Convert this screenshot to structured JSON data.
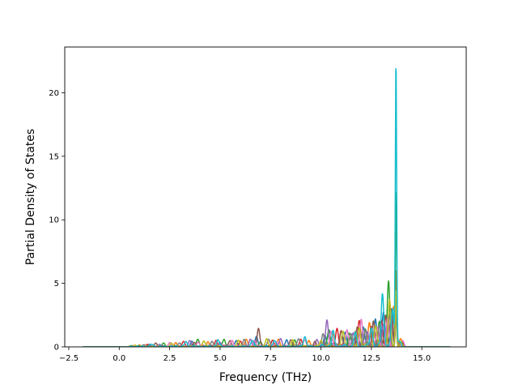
{
  "chart_data": {
    "type": "line",
    "title": "",
    "xlabel": "Frequency (THz)",
    "ylabel": "Partial Density of States",
    "xlim": [
      -2.7,
      17.2
    ],
    "ylim": [
      0,
      23.6
    ],
    "x_ticks": [
      -2.5,
      0.0,
      2.5,
      5.0,
      7.5,
      10.0,
      12.5,
      15.0
    ],
    "x_tick_labels": [
      "−2.5",
      "0.0",
      "2.5",
      "5.0",
      "7.5",
      "10.0",
      "12.5",
      "15.0"
    ],
    "y_ticks": [
      0,
      5,
      10,
      15,
      20
    ],
    "y_tick_labels": [
      "0",
      "5",
      "10",
      "15",
      "20"
    ],
    "grid": false,
    "legend": "none",
    "x_range_of_data": [
      -1.8,
      16.4
    ],
    "palette": [
      "#1f77b4",
      "#ff7f0e",
      "#2ca02c",
      "#d62728",
      "#9467bd",
      "#8c564b",
      "#e377c2",
      "#7f7f7f",
      "#bcbd22",
      "#17becf"
    ],
    "series": [
      {
        "color": "#1f77b4",
        "peaks": [
          [
            1.5,
            0.2
          ],
          [
            3.6,
            0.45
          ],
          [
            5.8,
            0.5
          ],
          [
            6.8,
            0.8
          ],
          [
            8.3,
            0.55
          ],
          [
            10.2,
            0.9
          ],
          [
            11.2,
            1.1
          ],
          [
            12.1,
            1.5
          ],
          [
            12.7,
            2.2
          ],
          [
            13.1,
            2.6
          ],
          [
            13.5,
            2.0
          ],
          [
            13.72,
            4.0
          ],
          [
            14.0,
            0.4
          ]
        ]
      },
      {
        "color": "#ff7f0e",
        "peaks": [
          [
            1.0,
            0.15
          ],
          [
            2.8,
            0.3
          ],
          [
            4.4,
            0.4
          ],
          [
            6.3,
            0.5
          ],
          [
            7.9,
            0.6
          ],
          [
            9.4,
            0.5
          ],
          [
            10.6,
            1.0
          ],
          [
            11.7,
            1.2
          ],
          [
            12.4,
            1.8
          ],
          [
            13.2,
            2.4
          ],
          [
            13.6,
            3.2
          ],
          [
            13.72,
            5.5
          ],
          [
            13.95,
            0.5
          ]
        ]
      },
      {
        "color": "#2ca02c",
        "peaks": [
          [
            0.6,
            0.1
          ],
          [
            2.2,
            0.25
          ],
          [
            3.9,
            0.5
          ],
          [
            5.2,
            0.55
          ],
          [
            7.0,
            0.4
          ],
          [
            8.7,
            0.5
          ],
          [
            10.4,
            1.2
          ],
          [
            11.4,
            0.9
          ],
          [
            12.2,
            1.4
          ],
          [
            12.9,
            2.0
          ],
          [
            13.35,
            5.2
          ],
          [
            13.72,
            12.6
          ],
          [
            14.0,
            0.3
          ]
        ]
      },
      {
        "color": "#d62728",
        "peaks": [
          [
            1.4,
            0.2
          ],
          [
            3.2,
            0.35
          ],
          [
            4.8,
            0.5
          ],
          [
            6.0,
            0.45
          ],
          [
            7.6,
            0.5
          ],
          [
            9.0,
            0.6
          ],
          [
            10.8,
            1.3
          ],
          [
            11.9,
            2.0
          ],
          [
            12.5,
            1.6
          ],
          [
            13.0,
            2.1
          ],
          [
            13.5,
            2.8
          ],
          [
            13.72,
            3.3
          ],
          [
            14.05,
            0.4
          ]
        ]
      },
      {
        "color": "#9467bd",
        "peaks": [
          [
            2.0,
            0.2
          ],
          [
            3.5,
            0.4
          ],
          [
            5.0,
            0.35
          ],
          [
            6.5,
            0.6
          ],
          [
            8.0,
            0.55
          ],
          [
            9.8,
            0.5
          ],
          [
            10.3,
            2.1
          ],
          [
            11.6,
            1.0
          ],
          [
            12.3,
            1.2
          ],
          [
            13.1,
            1.8
          ],
          [
            13.6,
            2.4
          ],
          [
            13.72,
            3.0
          ],
          [
            13.95,
            0.3
          ]
        ]
      },
      {
        "color": "#8c564b",
        "peaks": [
          [
            1.8,
            0.25
          ],
          [
            3.7,
            0.3
          ],
          [
            5.5,
            0.45
          ],
          [
            6.9,
            1.4
          ],
          [
            8.5,
            0.5
          ],
          [
            9.7,
            0.4
          ],
          [
            11.0,
            1.1
          ],
          [
            11.8,
            1.4
          ],
          [
            12.6,
            1.9
          ],
          [
            13.2,
            2.5
          ],
          [
            13.5,
            3.0
          ],
          [
            13.72,
            3.6
          ],
          [
            14.0,
            0.4
          ]
        ]
      },
      {
        "color": "#e377c2",
        "peaks": [
          [
            2.5,
            0.3
          ],
          [
            3.9,
            0.35
          ],
          [
            5.6,
            0.5
          ],
          [
            6.7,
            0.5
          ],
          [
            7.8,
            0.4
          ],
          [
            9.2,
            0.55
          ],
          [
            10.5,
            1.0
          ],
          [
            11.3,
            1.2
          ],
          [
            12.0,
            2.0
          ],
          [
            12.8,
            1.5
          ],
          [
            13.3,
            2.2
          ],
          [
            13.72,
            2.8
          ],
          [
            14.05,
            0.5
          ]
        ]
      },
      {
        "color": "#7f7f7f",
        "peaks": [
          [
            1.2,
            0.15
          ],
          [
            3.0,
            0.3
          ],
          [
            4.6,
            0.4
          ],
          [
            6.2,
            0.5
          ],
          [
            7.4,
            0.55
          ],
          [
            8.9,
            0.6
          ],
          [
            10.1,
            0.8
          ],
          [
            11.5,
            0.9
          ],
          [
            12.2,
            1.3
          ],
          [
            12.9,
            1.7
          ],
          [
            13.4,
            2.3
          ],
          [
            13.72,
            2.6
          ],
          [
            13.9,
            0.3
          ]
        ]
      },
      {
        "color": "#bcbd22",
        "peaks": [
          [
            0.8,
            0.1
          ],
          [
            2.6,
            0.25
          ],
          [
            4.2,
            0.45
          ],
          [
            5.9,
            0.5
          ],
          [
            7.3,
            0.6
          ],
          [
            8.6,
            0.45
          ],
          [
            10.0,
            0.5
          ],
          [
            11.1,
            1.2
          ],
          [
            11.9,
            1.5
          ],
          [
            12.7,
            1.6
          ],
          [
            13.4,
            3.5
          ],
          [
            13.72,
            4.6
          ],
          [
            14.0,
            0.2
          ]
        ]
      },
      {
        "color": "#17becf",
        "peaks": [
          [
            1.6,
            0.2
          ],
          [
            3.3,
            0.4
          ],
          [
            4.9,
            0.55
          ],
          [
            6.6,
            0.5
          ],
          [
            7.7,
            0.5
          ],
          [
            9.2,
            0.8
          ],
          [
            10.6,
            1.1
          ],
          [
            11.7,
            1.0
          ],
          [
            12.5,
            1.5
          ],
          [
            13.05,
            4.2
          ],
          [
            13.55,
            3.0
          ],
          [
            13.72,
            22.7
          ],
          [
            13.85,
            0.4
          ]
        ]
      }
    ]
  }
}
